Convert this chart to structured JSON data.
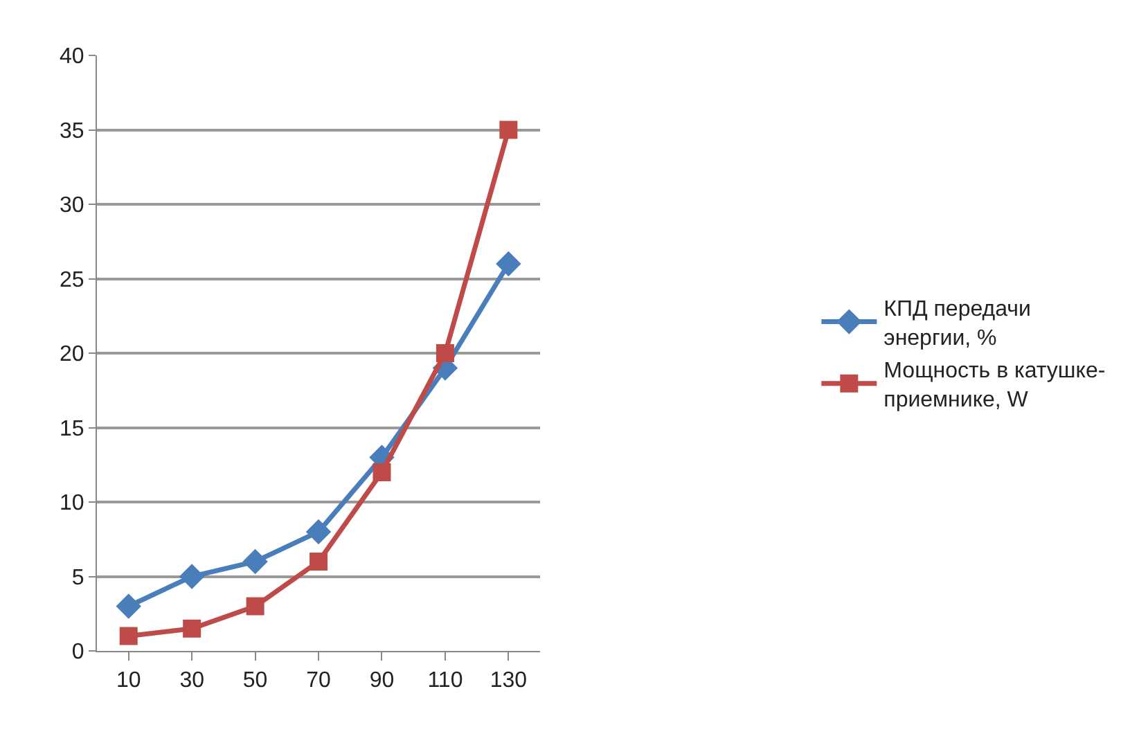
{
  "chart_data": {
    "type": "line",
    "categories": [
      "10",
      "30",
      "50",
      "70",
      "90",
      "110",
      "130"
    ],
    "series": [
      {
        "name": "КПД передачи энергии, %",
        "color": "#4a7ebb",
        "marker": "diamond",
        "values": [
          3,
          5,
          6,
          8,
          13,
          19,
          26
        ]
      },
      {
        "name": "Мощность в катушке-приемнике, W",
        "color": "#be4b48",
        "marker": "square",
        "values": [
          1,
          1.5,
          3,
          6,
          12,
          20,
          35
        ]
      }
    ],
    "ylim": [
      0,
      40
    ],
    "yticks": [
      0,
      5,
      10,
      15,
      20,
      25,
      30,
      35,
      40
    ],
    "grid": "y",
    "legend": "right",
    "line_style": "solid"
  }
}
